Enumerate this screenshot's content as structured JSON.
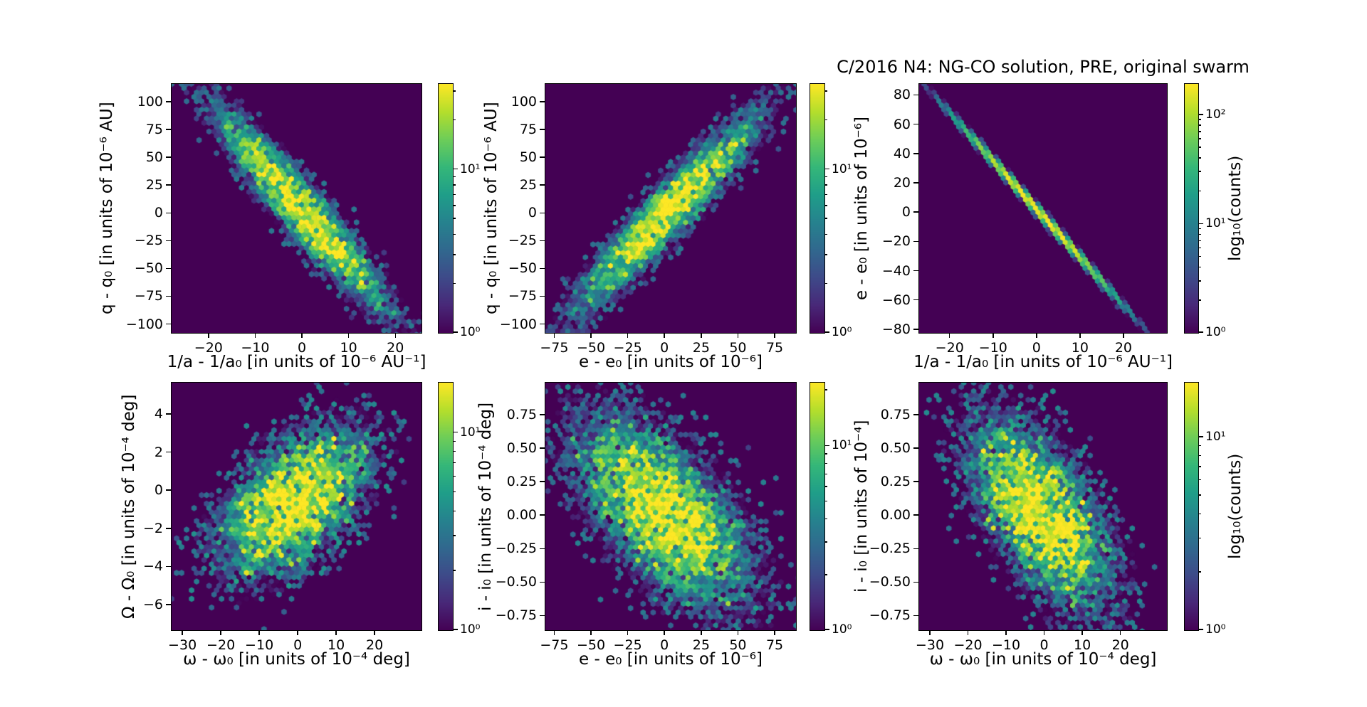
{
  "figure": {
    "title": "C/2016 N4: NG-CO solution, PRE, original swarm",
    "background": "#ffffff",
    "plot_background": "#440154",
    "colormap": "viridis"
  },
  "chart_data": [
    {
      "id": "q-vs-1a",
      "type": "hexbin",
      "xlabel": "1/a - 1/a₀ [in units of 10⁻⁶ AU⁻¹]",
      "ylabel": "q - q₀ [in units of 10⁻⁶ AU]",
      "xlim": [
        -27.9,
        25.6
      ],
      "ylim": [
        -108,
        116
      ],
      "xticks": [
        -20,
        -10,
        0,
        10,
        20
      ],
      "xtick_labels": [
        "−20",
        "−10",
        "0",
        "10",
        "20"
      ],
      "yticks": [
        100,
        75,
        50,
        25,
        0,
        -25,
        -50,
        -75,
        -100
      ],
      "ytick_labels": [
        "100",
        "75",
        "50",
        "25",
        "0",
        "−25",
        "−50",
        "−75",
        "−100"
      ],
      "distribution": {
        "center": [
          0,
          2
        ],
        "sigma": [
          8.5,
          42
        ],
        "rho": -0.94,
        "peak_count": 33,
        "noise": 0.55,
        "seed": 3
      },
      "colorbar": {
        "scale": "log",
        "decades": 1.52,
        "ticks": [
          {
            "value": 10,
            "label": "10¹"
          },
          {
            "value": 1,
            "label": "10⁰"
          }
        ]
      },
      "trend": "strong negative linear correlation"
    },
    {
      "id": "q-vs-e",
      "type": "hexbin",
      "xlabel": "e - e₀ [in units of 10⁻⁶]",
      "ylabel": "q - q₀ [in units of 10⁻⁶ AU]",
      "xlim": [
        -81,
        89.5
      ],
      "ylim": [
        -108,
        116
      ],
      "xticks": [
        -75,
        -50,
        -25,
        0,
        25,
        50,
        75
      ],
      "xtick_labels": [
        "−75",
        "−50",
        "−25",
        "0",
        "25",
        "50",
        "75"
      ],
      "yticks": [
        100,
        75,
        50,
        25,
        0,
        -25,
        -50,
        -75,
        -100
      ],
      "ytick_labels": [
        "100",
        "75",
        "50",
        "25",
        "0",
        "−25",
        "−50",
        "−75",
        "−100"
      ],
      "distribution": {
        "center": [
          2,
          0
        ],
        "sigma": [
          29,
          41
        ],
        "rho": 0.94,
        "peak_count": 33,
        "noise": 0.55,
        "seed": 7
      },
      "colorbar": {
        "scale": "log",
        "decades": 1.52,
        "ticks": [
          {
            "value": 10,
            "label": "10¹"
          },
          {
            "value": 1,
            "label": "10⁰"
          }
        ]
      },
      "trend": "strong positive linear correlation"
    },
    {
      "id": "e-vs-1a",
      "type": "hexbin",
      "title": "C/2016 N4: NG-CO solution, PRE, original swarm",
      "xlabel": "1/a - 1/a₀ [in units of 10⁻⁶ AU⁻¹]",
      "ylabel": "e - e₀ [in units of 10⁻⁶]",
      "xlim": [
        -27,
        30
      ],
      "ylim": [
        -82.5,
        87.5
      ],
      "xticks": [
        -20,
        -10,
        0,
        10,
        20
      ],
      "xtick_labels": [
        "−20",
        "−10",
        "0",
        "10",
        "20"
      ],
      "yticks": [
        80,
        60,
        40,
        20,
        0,
        -20,
        -40,
        -60,
        -80
      ],
      "ytick_labels": [
        "80",
        "60",
        "40",
        "20",
        "0",
        "−20",
        "−40",
        "−60",
        "−80"
      ],
      "distribution": {
        "center": [
          0,
          2
        ],
        "sigma": [
          8.8,
          29
        ],
        "rho": -0.998,
        "peak_count": 210,
        "noise": 0.12,
        "seed": 11
      },
      "colorbar": {
        "scale": "log",
        "decades": 2.28,
        "label": "log₁₀(counts)",
        "ticks": [
          {
            "value": 100,
            "label": "10²"
          },
          {
            "value": 10,
            "label": "10¹"
          },
          {
            "value": 1,
            "label": "10⁰"
          }
        ]
      },
      "trend": "near-perfect negative linear correlation (thin line)"
    },
    {
      "id": "Omega-vs-omega",
      "type": "hexbin",
      "xlabel": "ω - ω₀ [in units of 10⁻⁴ deg]",
      "ylabel": "Ω - Ω₀ [in units of 10⁻⁴ deg]",
      "xlim": [
        -32.8,
        32.2
      ],
      "ylim": [
        -7.35,
        5.65
      ],
      "xticks": [
        -30,
        -20,
        -10,
        0,
        10,
        20
      ],
      "xtick_labels": [
        "−30",
        "−20",
        "−10",
        "0",
        "10",
        "20"
      ],
      "yticks": [
        4,
        2,
        0,
        -2,
        -4,
        -6
      ],
      "ytick_labels": [
        "4",
        "2",
        "0",
        "−2",
        "−4",
        "−6"
      ],
      "distribution": {
        "center": [
          -1,
          -0.6
        ],
        "sigma": [
          9.5,
          1.9
        ],
        "rho": 0.52,
        "peak_count": 19,
        "noise": 0.6,
        "seed": 13
      },
      "colorbar": {
        "scale": "log",
        "decades": 1.25,
        "ticks": [
          {
            "value": 10,
            "label": "10¹"
          },
          {
            "value": 1,
            "label": "10⁰"
          }
        ]
      },
      "trend": "diffuse positive correlation"
    },
    {
      "id": "i-vs-e",
      "type": "hexbin",
      "xlabel": "e - e₀ [in units of 10⁻⁶]",
      "ylabel": "i - i₀ [in units of 10⁻⁴ deg]",
      "xlim": [
        -81,
        89.5
      ],
      "ylim": [
        -0.86,
        0.99
      ],
      "xticks": [
        -75,
        -50,
        -25,
        0,
        25,
        50,
        75
      ],
      "xtick_labels": [
        "−75",
        "−50",
        "−25",
        "0",
        "25",
        "50",
        "75"
      ],
      "yticks": [
        0.75,
        0.5,
        0.25,
        0,
        -0.25,
        -0.5,
        -0.75
      ],
      "ytick_labels": [
        "0.75",
        "0.50",
        "0.25",
        "0.00",
        "−0.25",
        "−0.50",
        "−0.75"
      ],
      "distribution": {
        "center": [
          0,
          0.02
        ],
        "sigma": [
          28,
          0.34
        ],
        "rho": -0.6,
        "peak_count": 21,
        "noise": 0.6,
        "seed": 17
      },
      "colorbar": {
        "scale": "log",
        "decades": 1.34,
        "ticks": [
          {
            "value": 10,
            "label": "10¹"
          },
          {
            "value": 1,
            "label": "10⁰"
          }
        ]
      },
      "trend": "diffuse negative correlation"
    },
    {
      "id": "i-vs-omega",
      "type": "hexbin",
      "xlabel": "ω - ω₀ [in units of 10⁻⁴ deg]",
      "ylabel": "i - i₀ [in units of 10⁻⁴]",
      "xlim": [
        -32.8,
        32.2
      ],
      "ylim": [
        -0.86,
        0.99
      ],
      "xticks": [
        -30,
        -20,
        -10,
        0,
        10,
        20
      ],
      "xtick_labels": [
        "−30",
        "−20",
        "−10",
        "0",
        "10",
        "20"
      ],
      "yticks": [
        0.75,
        0.5,
        0.25,
        0,
        -0.25,
        -0.5,
        -0.75
      ],
      "ytick_labels": [
        "0.75",
        "0.50",
        "0.25",
        "0.00",
        "−0.25",
        "−0.50",
        "−0.75"
      ],
      "distribution": {
        "center": [
          -1,
          0.02
        ],
        "sigma": [
          9.0,
          0.34
        ],
        "rho": -0.6,
        "peak_count": 20,
        "noise": 0.6,
        "seed": 23
      },
      "colorbar": {
        "scale": "log",
        "decades": 1.28,
        "label": "log₁₀(counts)",
        "ticks": [
          {
            "value": 10,
            "label": "10¹"
          },
          {
            "value": 1,
            "label": "10⁰"
          }
        ]
      },
      "trend": "diffuse negative correlation"
    }
  ]
}
